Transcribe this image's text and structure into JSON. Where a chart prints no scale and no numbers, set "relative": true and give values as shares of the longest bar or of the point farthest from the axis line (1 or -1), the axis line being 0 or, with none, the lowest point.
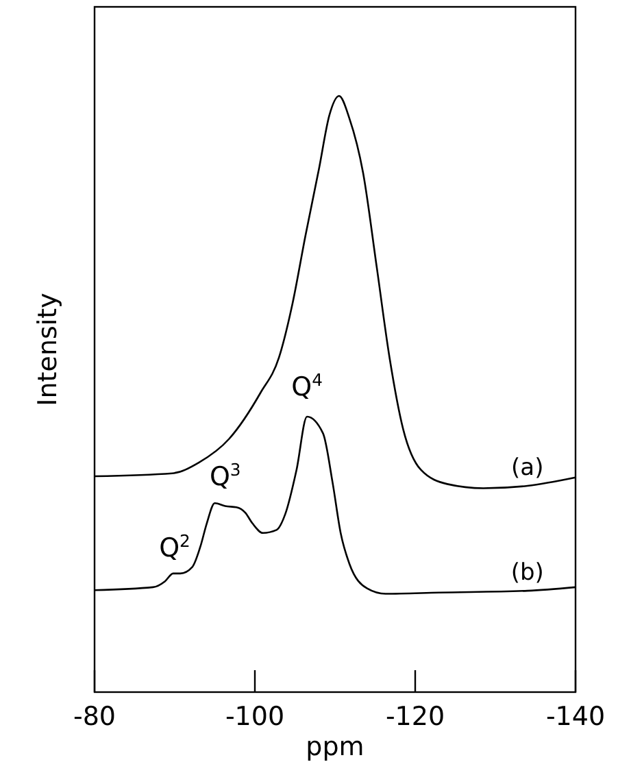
{
  "chart_data": {
    "type": "line",
    "relative": true,
    "xlabel": "ppm",
    "ylabel": "Intensity",
    "xlim": [
      -80,
      -140
    ],
    "xticks": [
      -80,
      -100,
      -120,
      -140
    ],
    "grid": false,
    "marker": "none",
    "line_style": "solid",
    "annotations": [
      {
        "text": "Q$^{2}$",
        "x": -90,
        "y": 0.2
      },
      {
        "text": "Q$^{3}$",
        "x": -96.3,
        "y": 0.32
      },
      {
        "text": "Q$^{4}$",
        "x": -106.5,
        "y": 0.47
      }
    ],
    "series": [
      {
        "name": "(a)",
        "color": "#000000",
        "x": [
          -80,
          -89.7,
          -93,
          -96.8,
          -100.7,
          -103,
          -104.7,
          -106.3,
          -108,
          -109.3,
          -110.5,
          -111.8,
          -113.5,
          -115.2,
          -116.8,
          -118.5,
          -120.7,
          -124,
          -128.5,
          -134,
          -140
        ],
        "values": [
          0.362,
          0.367,
          0.385,
          0.425,
          0.502,
          0.561,
          0.652,
          0.765,
          0.878,
          0.968,
          1,
          0.962,
          0.871,
          0.713,
          0.561,
          0.441,
          0.373,
          0.349,
          0.342,
          0.346,
          0.36
        ]
      },
      {
        "name": "(b)",
        "color": "#000000",
        "x": [
          -80,
          -87.3,
          -88.8,
          -89.8,
          -90.7,
          -92.2,
          -93.2,
          -94,
          -95,
          -96.3,
          -97.7,
          -98.8,
          -99.7,
          -101,
          -102.7,
          -103.8,
          -105.2,
          -106.5,
          -108.5,
          -109.7,
          -110.7,
          -111.8,
          -114,
          -116.3,
          -123,
          -134,
          -140
        ],
        "values": [
          0.171,
          0.176,
          0.186,
          0.199,
          0.199,
          0.21,
          0.244,
          0.283,
          0.317,
          0.312,
          0.31,
          0.301,
          0.283,
          0.267,
          0.272,
          0.299,
          0.373,
          0.462,
          0.434,
          0.351,
          0.267,
          0.215,
          0.174,
          0.165,
          0.167,
          0.17,
          0.176
        ]
      }
    ]
  }
}
